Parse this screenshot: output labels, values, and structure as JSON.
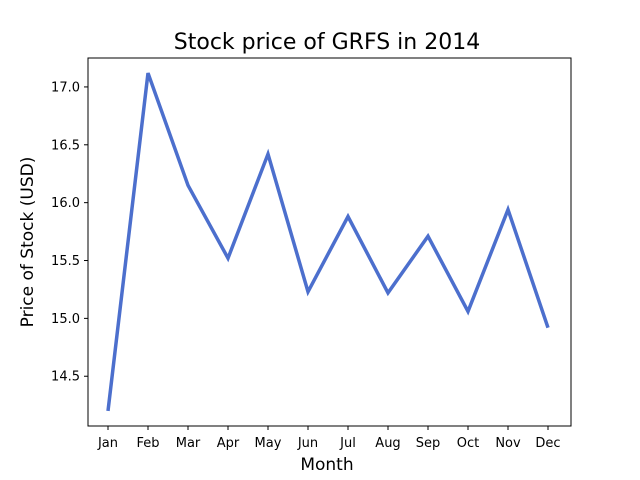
{
  "chart_data": {
    "type": "line",
    "title": "Stock price of GRFS in 2014",
    "xlabel": "Month",
    "ylabel": "Price of Stock (USD)",
    "categories": [
      "Jan",
      "Feb",
      "Mar",
      "Apr",
      "May",
      "Jun",
      "Jul",
      "Aug",
      "Sep",
      "Oct",
      "Nov",
      "Dec"
    ],
    "series": [
      {
        "values": [
          14.2,
          17.12,
          16.15,
          15.52,
          16.42,
          15.23,
          15.88,
          15.22,
          15.71,
          15.06,
          15.94,
          14.92
        ],
        "color": "#4c6fcd"
      }
    ],
    "ylim": [
      14.07,
      17.25
    ],
    "yticks": [
      14.5,
      15.0,
      15.5,
      16.0,
      16.5,
      17.0
    ],
    "ytick_labels": [
      "14.5",
      "15.0",
      "15.5",
      "16.0",
      "16.5",
      "17.0"
    ],
    "grid": false,
    "legend": "none"
  }
}
